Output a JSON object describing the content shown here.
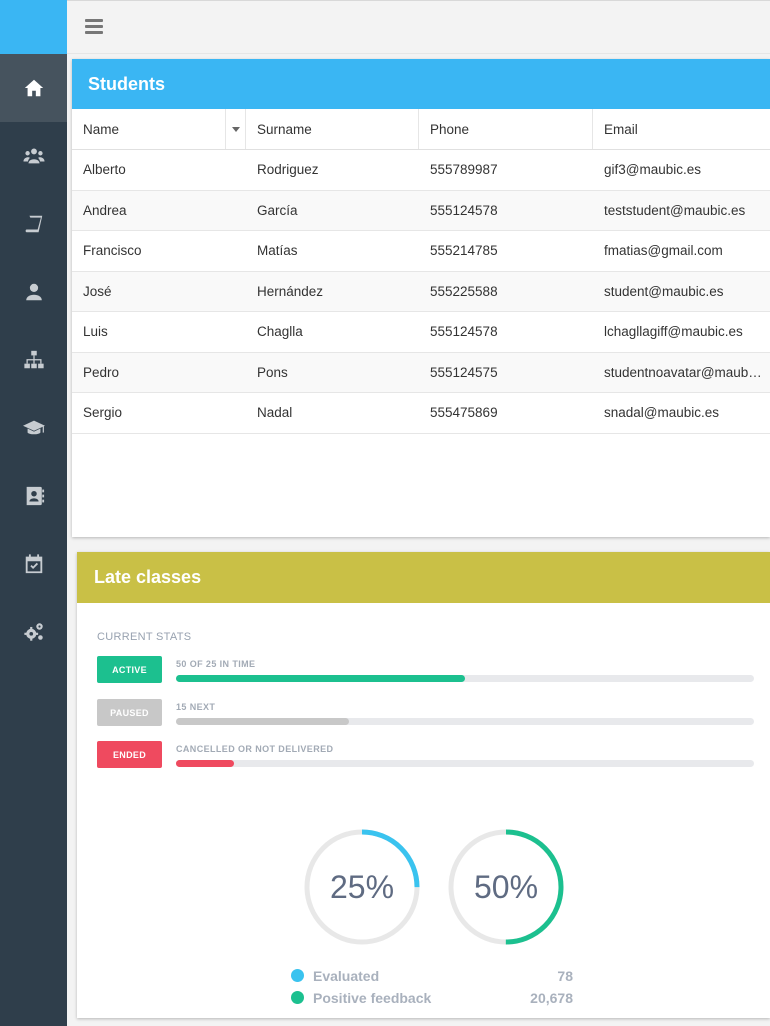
{
  "sidebar": {
    "items": [
      {
        "icon": "home-icon",
        "active": true
      },
      {
        "icon": "users-icon",
        "active": false
      },
      {
        "icon": "book-icon",
        "active": false
      },
      {
        "icon": "user-icon",
        "active": false
      },
      {
        "icon": "sitemap-icon",
        "active": false
      },
      {
        "icon": "graduation-cap-icon",
        "active": false
      },
      {
        "icon": "address-book-icon",
        "active": false
      },
      {
        "icon": "calendar-check-icon",
        "active": false
      },
      {
        "icon": "cogs-icon",
        "active": false
      }
    ]
  },
  "students": {
    "title": "Students",
    "columns": [
      "Name",
      "Surname",
      "Phone",
      "Email"
    ],
    "rows": [
      [
        "Alberto",
        "Rodriguez",
        "555789987",
        "gif3@maubic.es"
      ],
      [
        "Andrea",
        "García",
        "555124578",
        "teststudent@maubic.es"
      ],
      [
        "Francisco",
        "Matías",
        "555214785",
        "fmatias@gmail.com"
      ],
      [
        "José",
        "Hernández",
        "555225588",
        "student@maubic.es"
      ],
      [
        "Luis",
        "Chaglla",
        "555124578",
        "lchagllagiff@maubic.es"
      ],
      [
        "Pedro",
        "Pons",
        "555124575",
        "studentnoavatar@maubic.es"
      ],
      [
        "Sergio",
        "Nadal",
        "555475869",
        "snadal@maubic.es"
      ]
    ]
  },
  "late_classes": {
    "title": "Late classes",
    "stats_label": "CURRENT STATS",
    "stats": [
      {
        "badge": "ACTIVE",
        "text": "50 OF 25 IN TIME",
        "color": "#1cc08f",
        "progress": 0.5
      },
      {
        "badge": "PAUSED",
        "text": "15 NEXT",
        "color": "#c8c8c8",
        "progress": 0.3
      },
      {
        "badge": "ENDED",
        "text": "CANCELLED OR NOT DELIVERED",
        "color": "#ef4a5f",
        "progress": 0.1
      }
    ],
    "donuts": [
      {
        "label": "25%",
        "value": 25,
        "color": "#3ac3ef"
      },
      {
        "label": "50%",
        "value": 50,
        "color": "#1cc08f"
      }
    ],
    "legend": [
      {
        "name": "Evaluated",
        "value": "78",
        "color": "#3ac3ef"
      },
      {
        "name": "Positive feedback",
        "value": "20,678",
        "color": "#1cc08f"
      }
    ]
  }
}
